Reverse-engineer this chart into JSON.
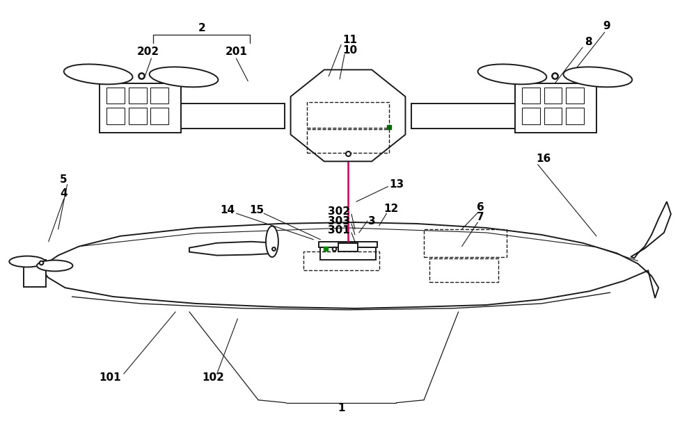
{
  "bg_color": "#ffffff",
  "line_color": "#1a1a1a",
  "line_color_pink": "#cc0055",
  "fig_width": 10.0,
  "fig_height": 6.42,
  "dpi": 100
}
